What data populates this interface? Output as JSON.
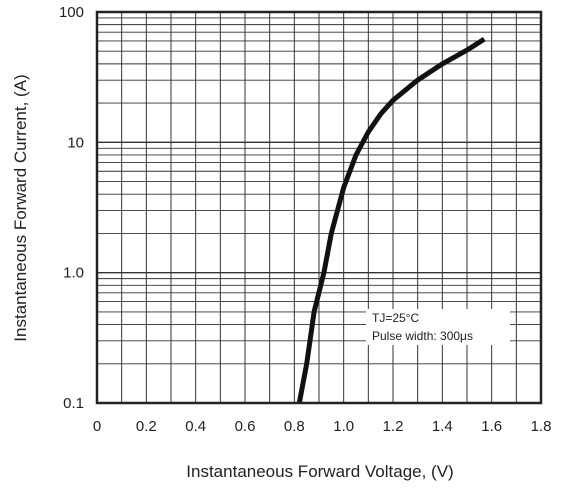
{
  "chart_data": {
    "type": "line",
    "title": "",
    "xlabel": "Instantaneous Forward Voltage, (V)",
    "ylabel": "Instantaneous Forward Current, (A)",
    "x_scale": "linear",
    "y_scale": "log",
    "xlim": [
      0,
      1.8
    ],
    "ylim": [
      0.1,
      100
    ],
    "x_ticks": [
      "0",
      "0.2",
      "0.4",
      "0.6",
      "0.8",
      "1.0",
      "1.2",
      "1.4",
      "1.6",
      "1.8"
    ],
    "y_ticks": [
      "0.1",
      "1.0",
      "10",
      "100"
    ],
    "grid": true,
    "series": [
      {
        "points": [
          {
            "x": 0.82,
            "y": 0.1
          },
          {
            "x": 0.85,
            "y": 0.2
          },
          {
            "x": 0.88,
            "y": 0.5
          },
          {
            "x": 0.92,
            "y": 1.0
          },
          {
            "x": 0.95,
            "y": 2.0
          },
          {
            "x": 1.0,
            "y": 4.5
          },
          {
            "x": 1.05,
            "y": 8.0
          },
          {
            "x": 1.1,
            "y": 12.0
          },
          {
            "x": 1.15,
            "y": 16.5
          },
          {
            "x": 1.2,
            "y": 21.0
          },
          {
            "x": 1.3,
            "y": 30.0
          },
          {
            "x": 1.4,
            "y": 40.0
          },
          {
            "x": 1.5,
            "y": 51.0
          },
          {
            "x": 1.57,
            "y": 62.0
          }
        ]
      }
    ],
    "annotations": [
      "TJ=25°C",
      "Pulse width: 300μs"
    ]
  }
}
